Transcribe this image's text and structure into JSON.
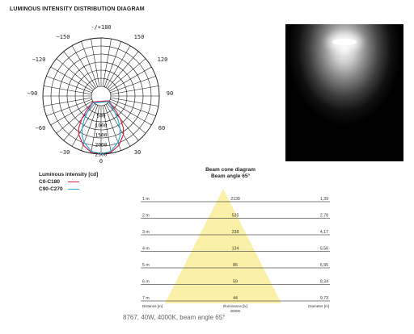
{
  "title": "LUMINOUS INTENSITY DISTRIBUTION DIAGRAM",
  "polar": {
    "angle_labels": {
      "top": "-/+180",
      "l150": "−150",
      "r150": "150",
      "l120": "−120",
      "r120": "120",
      "l90": "−90",
      "r90": "90",
      "l60": "−60",
      "r60": "60",
      "l30": "−30",
      "r30": "30",
      "bottom": "0"
    },
    "radial_labels": [
      "500",
      "1000",
      "1500",
      "2000",
      "2500"
    ],
    "radial_max": 2500,
    "series": [
      {
        "key": "C0-C180",
        "color": "#d6223a",
        "intensity": [
          [
            0,
            2500
          ],
          [
            10,
            2450
          ],
          [
            20,
            2200
          ],
          [
            30,
            1800
          ],
          [
            35,
            1500
          ],
          [
            40,
            1050
          ],
          [
            45,
            550
          ],
          [
            50,
            180
          ],
          [
            55,
            30
          ],
          [
            60,
            0
          ]
        ]
      },
      {
        "key": "C90-C270",
        "color": "#29a9e0",
        "intensity": [
          [
            0,
            2500
          ],
          [
            10,
            2400
          ],
          [
            20,
            2050
          ],
          [
            25,
            1800
          ],
          [
            30,
            1450
          ],
          [
            35,
            1050
          ],
          [
            40,
            620
          ],
          [
            45,
            260
          ],
          [
            50,
            60
          ],
          [
            55,
            0
          ]
        ]
      }
    ]
  },
  "legend": {
    "heading": "Luminous intensity [cd]",
    "items": [
      {
        "label": "C0-C180",
        "color": "#d6223a"
      },
      {
        "label": "C90-C270",
        "color": "#29a9e0"
      }
    ]
  },
  "photo": {
    "name": "light-beam-photo"
  },
  "cone": {
    "title_line1": "Beam cone diagram",
    "title_line2": "Beam angle 65°",
    "fill_color": "#fbf0a8",
    "rows": [
      {
        "distance": "1 m",
        "illuminance": "2139",
        "diameter": "1,39"
      },
      {
        "distance": "2 m",
        "illuminance": "535",
        "diameter": "2,78"
      },
      {
        "distance": "3 m",
        "illuminance": "238",
        "diameter": "4,17"
      },
      {
        "distance": "4 m",
        "illuminance": "134",
        "diameter": "5,56"
      },
      {
        "distance": "5 m",
        "illuminance": "86",
        "diameter": "6,95"
      },
      {
        "distance": "6 m",
        "illuminance": "59",
        "diameter": "8,34"
      },
      {
        "distance": "7 m",
        "illuminance": "44",
        "diameter": "9,73"
      }
    ],
    "footer": {
      "distance": "Distance [m]",
      "illuminance": "Illuminance [lx]",
      "cct": "4000K",
      "diameter": "Diameter [m]"
    }
  },
  "caption": "8767, 40W, 4000K, beam angle 65°"
}
